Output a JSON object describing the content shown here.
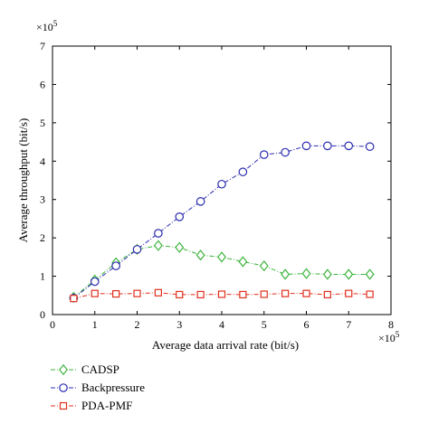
{
  "chart_data": {
    "type": "line",
    "title": "",
    "xlabel": "Average data arrival rate (bit/s)",
    "ylabel": "Average throughput (bit/s)",
    "x_multiplier": "×10^5",
    "y_multiplier": "×10^5",
    "xlim": [
      0,
      8
    ],
    "ylim": [
      0,
      7
    ],
    "x_ticks": [
      "0",
      "1",
      "2",
      "3",
      "4",
      "5",
      "6",
      "7",
      "8"
    ],
    "y_ticks": [
      "0",
      "1",
      "2",
      "3",
      "4",
      "5",
      "6",
      "7"
    ],
    "grid": false,
    "legend_position": "below",
    "x": [
      0.5,
      1.0,
      1.5,
      2.0,
      2.5,
      3.0,
      3.5,
      4.0,
      4.5,
      5.0,
      5.5,
      6.0,
      6.5,
      7.0,
      7.5
    ],
    "series": [
      {
        "name": "CADSP",
        "color": "#3cb43c",
        "marker": "diamond",
        "values": [
          0.45,
          0.9,
          1.35,
          1.7,
          1.8,
          1.75,
          1.55,
          1.5,
          1.38,
          1.27,
          1.05,
          1.07,
          1.05,
          1.05,
          1.05
        ]
      },
      {
        "name": "Backpressure",
        "color": "#2b2bb0",
        "marker": "circle",
        "values": [
          0.43,
          0.86,
          1.27,
          1.7,
          2.12,
          2.55,
          2.95,
          3.4,
          3.72,
          4.17,
          4.23,
          4.4,
          4.4,
          4.4,
          4.38
        ]
      },
      {
        "name": "PDA-PMF",
        "color": "#e0301e",
        "marker": "square",
        "values": [
          0.42,
          0.55,
          0.54,
          0.55,
          0.57,
          0.52,
          0.52,
          0.53,
          0.52,
          0.53,
          0.55,
          0.55,
          0.52,
          0.55,
          0.53
        ]
      }
    ]
  }
}
